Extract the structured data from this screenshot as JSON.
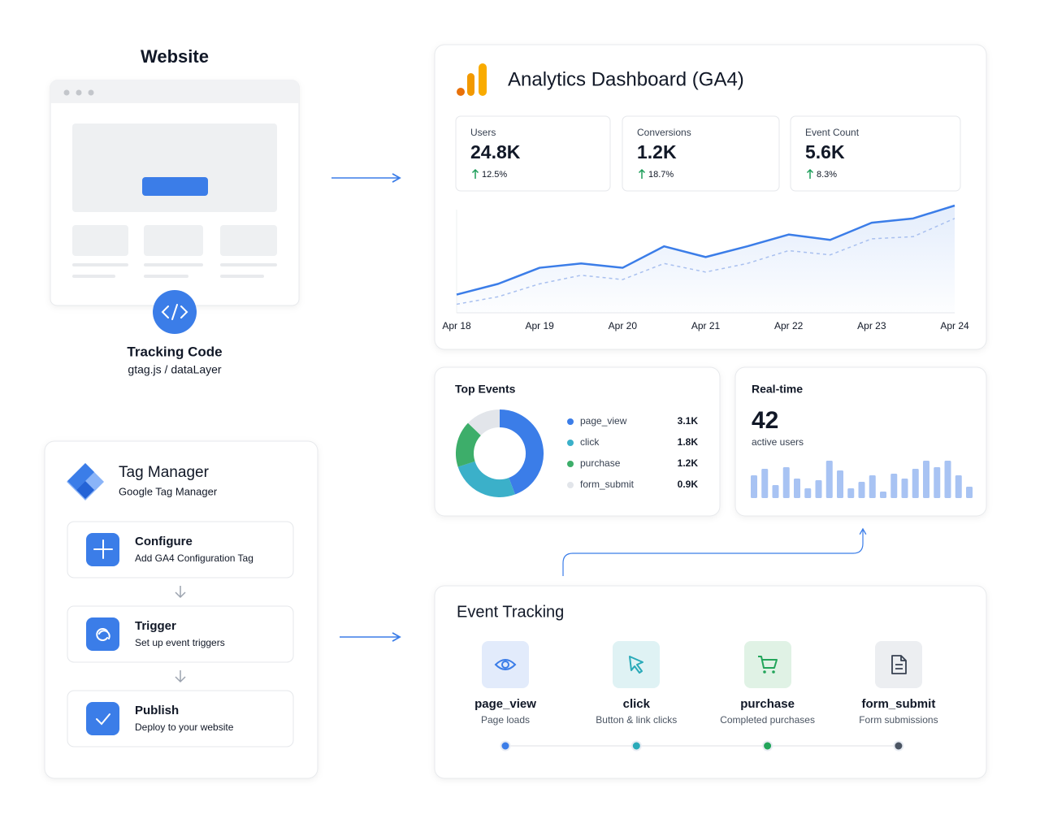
{
  "website": {
    "title": "Website"
  },
  "tracking_code": {
    "title": "Tracking Code",
    "subtitle": "gtag.js / dataLayer"
  },
  "dashboard": {
    "title": "Analytics Dashboard (GA4)",
    "metrics": [
      {
        "label": "Users",
        "value": "24.8K",
        "change": "12.5%"
      },
      {
        "label": "Conversions",
        "value": "1.2K",
        "change": "18.7%"
      },
      {
        "label": "Event Count",
        "value": "5.6K",
        "change": "8.3%"
      }
    ]
  },
  "realtime": {
    "value": 42,
    "caption": "active users"
  },
  "tag_manager": {
    "title": "Tag Manager",
    "subtitle": "Google Tag Manager",
    "steps": [
      {
        "title": "Configure",
        "description": "Add GA4 Configuration Tag"
      },
      {
        "title": "Trigger",
        "description": "Set up event triggers"
      },
      {
        "title": "Publish",
        "description": "Deploy to your website"
      }
    ]
  },
  "event_tracking": {
    "title": "Event Tracking",
    "events": [
      {
        "name": "page_view",
        "description": "Page loads"
      },
      {
        "name": "click",
        "description": "Button & link clicks"
      },
      {
        "name": "purchase",
        "description": "Completed purchases"
      },
      {
        "name": "form_submit",
        "description": "Form submissions"
      }
    ]
  },
  "chart_data": [
    {
      "type": "line",
      "categories": [
        "Apr 18",
        null,
        "Apr 19",
        null,
        "Apr 20",
        null,
        "Apr 21",
        null,
        "Apr 22",
        null,
        "Apr 23",
        null,
        "Apr 24"
      ],
      "series": [
        {
          "color": "#3b7de8",
          "values": [
            17,
            27,
            42,
            46,
            42,
            62,
            52,
            62,
            73,
            68,
            84,
            88,
            100
          ]
        },
        {
          "color": "#a9c0ef",
          "dashed": true,
          "values": [
            8,
            15,
            27,
            35,
            31,
            46,
            38,
            46,
            58,
            54,
            69,
            71,
            88
          ]
        }
      ],
      "ylim": [
        0,
        100
      ],
      "area": true
    },
    {
      "type": "donut",
      "title": "Top Events",
      "categories": [
        "page_view",
        "click",
        "purchase",
        "form_submit"
      ],
      "values": [
        3100,
        1800,
        1200,
        900
      ],
      "value_labels": [
        "3.1K",
        "1.8K",
        "1.2K",
        "0.9K"
      ],
      "colors": [
        "#3b7de8",
        "#3bb0c9",
        "#3dae6a",
        "#e2e5ea"
      ]
    },
    {
      "type": "bar",
      "title": "Real-time",
      "values": [
        28,
        36,
        16,
        38,
        24,
        12,
        22,
        46,
        34,
        12,
        20,
        28,
        8,
        30,
        24,
        36,
        46,
        38,
        46,
        28,
        14
      ],
      "color": "#a8c3f3",
      "ylim": [
        0,
        50
      ]
    }
  ]
}
